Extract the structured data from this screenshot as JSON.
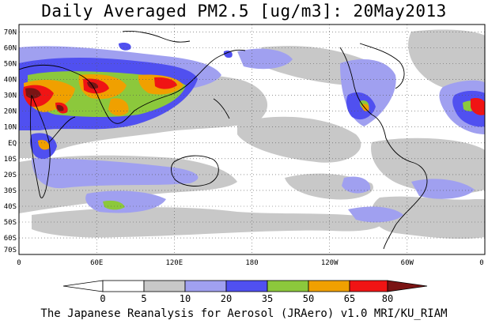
{
  "title": "Daily Averaged PM2.5 [ug/m3]: 20May2013",
  "footer": "The Japanese Reanalysis for Aerosol (JRAero) v1.0 MRI/KU_RIAM",
  "lat_labels": [
    "70N",
    "60N",
    "50N",
    "40N",
    "30N",
    "20N",
    "10N",
    "EQ",
    "10S",
    "20S",
    "30S",
    "40S",
    "50S",
    "60S",
    "70S"
  ],
  "lon_labels": [
    "0",
    "60E",
    "120E",
    "180",
    "120W",
    "60W",
    "0"
  ],
  "colorbar": {
    "tick_labels": [
      "0",
      "5",
      "10",
      "20",
      "35",
      "50",
      "65",
      "80"
    ],
    "colors": [
      "#ffffff",
      "#c8c8c8",
      "#a0a0f0",
      "#5050f0",
      "#8cc83c",
      "#f0a000",
      "#f01414",
      "#7a1414"
    ]
  }
}
